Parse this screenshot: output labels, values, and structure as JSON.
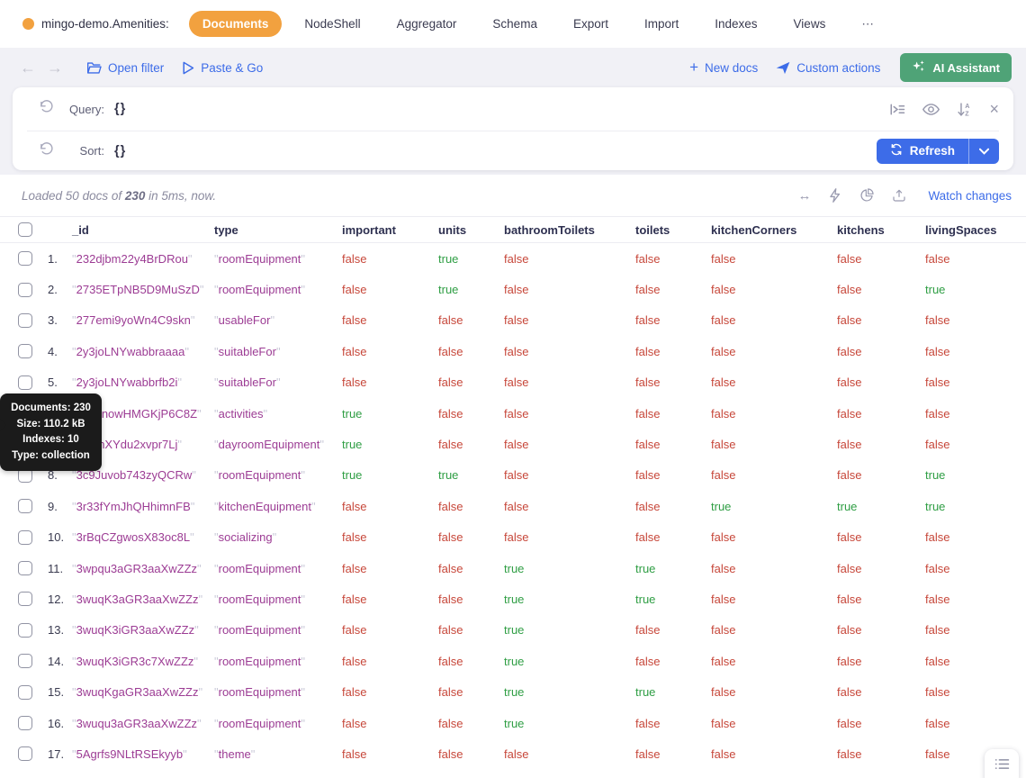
{
  "topnav": {
    "collection_label": "mingo-demo.Amenities:",
    "tabs": [
      {
        "label": "Documents",
        "active": true
      },
      {
        "label": "NodeShell"
      },
      {
        "label": "Aggregator"
      },
      {
        "label": "Schema"
      },
      {
        "label": "Export"
      },
      {
        "label": "Import"
      },
      {
        "label": "Indexes"
      },
      {
        "label": "Views"
      },
      {
        "label": "⋯"
      }
    ]
  },
  "toolbar": {
    "open_filter_label": "Open filter",
    "paste_go_label": "Paste & Go",
    "new_docs_label": "New docs",
    "new_docs_plus": "+",
    "custom_actions_label": "Custom actions",
    "ai_assistant_label": "AI Assistant"
  },
  "query_panel": {
    "query_label": "Query:",
    "query_value": "{}",
    "sort_label": "Sort:",
    "sort_value": "{}",
    "refresh_label": "Refresh"
  },
  "status": {
    "loaded_prefix": "Loaded 50 docs of ",
    "loaded_bold": "230",
    "loaded_suffix": " in 5ms, now.",
    "watch_changes_label": "Watch changes",
    "arrows_glyph": "↔"
  },
  "tooltip": {
    "lines": [
      "Documents: 230",
      "Size: 110.2 kB",
      "Indexes: 10",
      "Type: collection"
    ]
  },
  "table": {
    "columns": [
      "_id",
      "type",
      "important",
      "units",
      "bathroomToilets",
      "toilets",
      "kitchenCorners",
      "kitchens",
      "livingSpaces"
    ],
    "rows": [
      {
        "n": "1.",
        "id": "232djbm22y4BrDRou",
        "type": "roomEquipment",
        "values": [
          "false",
          "true",
          "false",
          "false",
          "false",
          "false",
          "false"
        ]
      },
      {
        "n": "2.",
        "id": "2735ETpNB5D9MuSzD",
        "type": "roomEquipment",
        "values": [
          "false",
          "true",
          "false",
          "false",
          "false",
          "false",
          "true"
        ]
      },
      {
        "n": "3.",
        "id": "277emi9yoWn4C9skn",
        "type": "usableFor",
        "values": [
          "false",
          "false",
          "false",
          "false",
          "false",
          "false",
          "false"
        ]
      },
      {
        "n": "4.",
        "id": "2y3joLNYwabbraaaa",
        "type": "suitableFor",
        "values": [
          "false",
          "false",
          "false",
          "false",
          "false",
          "false",
          "false"
        ]
      },
      {
        "n": "5.",
        "id": "2y3joLNYwabbrfb2i",
        "type": "suitableFor",
        "values": [
          "false",
          "false",
          "false",
          "false",
          "false",
          "false",
          "false"
        ]
      },
      {
        "n": "6.",
        "id": "3basnowHMGKjP6C8Z",
        "type": "activities",
        "values": [
          "true",
          "false",
          "false",
          "false",
          "false",
          "false",
          "false"
        ]
      },
      {
        "n": "7.",
        "id": "3bionXYdu2xvpr7Lj",
        "type": "dayroomEquipment",
        "values": [
          "true",
          "false",
          "false",
          "false",
          "false",
          "false",
          "false"
        ]
      },
      {
        "n": "8.",
        "id": "3c9Juvob743zyQCRw",
        "type": "roomEquipment",
        "values": [
          "true",
          "true",
          "false",
          "false",
          "false",
          "false",
          "true"
        ]
      },
      {
        "n": "9.",
        "id": "3r33fYmJhQHhimnFB",
        "type": "kitchenEquipment",
        "values": [
          "false",
          "false",
          "false",
          "false",
          "true",
          "true",
          "true"
        ]
      },
      {
        "n": "10.",
        "id": "3rBqCZgwosX83oc8L",
        "type": "socializing",
        "values": [
          "false",
          "false",
          "false",
          "false",
          "false",
          "false",
          "false"
        ]
      },
      {
        "n": "11.",
        "id": "3wpqu3aGR3aaXwZZz",
        "type": "roomEquipment",
        "values": [
          "false",
          "false",
          "true",
          "true",
          "false",
          "false",
          "false"
        ]
      },
      {
        "n": "12.",
        "id": "3wuqK3aGR3aaXwZZz",
        "type": "roomEquipment",
        "values": [
          "false",
          "false",
          "true",
          "true",
          "false",
          "false",
          "false"
        ]
      },
      {
        "n": "13.",
        "id": "3wuqK3iGR3aaXwZZz",
        "type": "roomEquipment",
        "values": [
          "false",
          "false",
          "true",
          "false",
          "false",
          "false",
          "false"
        ]
      },
      {
        "n": "14.",
        "id": "3wuqK3iGR3c7XwZZz",
        "type": "roomEquipment",
        "values": [
          "false",
          "false",
          "true",
          "false",
          "false",
          "false",
          "false"
        ]
      },
      {
        "n": "15.",
        "id": "3wuqKgaGR3aaXwZZz",
        "type": "roomEquipment",
        "values": [
          "false",
          "false",
          "true",
          "true",
          "false",
          "false",
          "false"
        ]
      },
      {
        "n": "16.",
        "id": "3wuqu3aGR3aaXwZZz",
        "type": "roomEquipment",
        "values": [
          "false",
          "false",
          "true",
          "false",
          "false",
          "false",
          "false"
        ]
      },
      {
        "n": "17.",
        "id": "5Agrfs9NLtRSEkyyb",
        "type": "theme",
        "values": [
          "false",
          "false",
          "false",
          "false",
          "false",
          "false",
          "false"
        ]
      }
    ]
  },
  "colors": {
    "accent_orange": "#f2a13f",
    "link_blue": "#3d6ce8",
    "button_green": "#4fa377",
    "bool_true": "#2f9e44",
    "bool_false": "#c7473a",
    "string_purple": "#9c3c94",
    "tooltip_bg": "#1b1b1b"
  }
}
